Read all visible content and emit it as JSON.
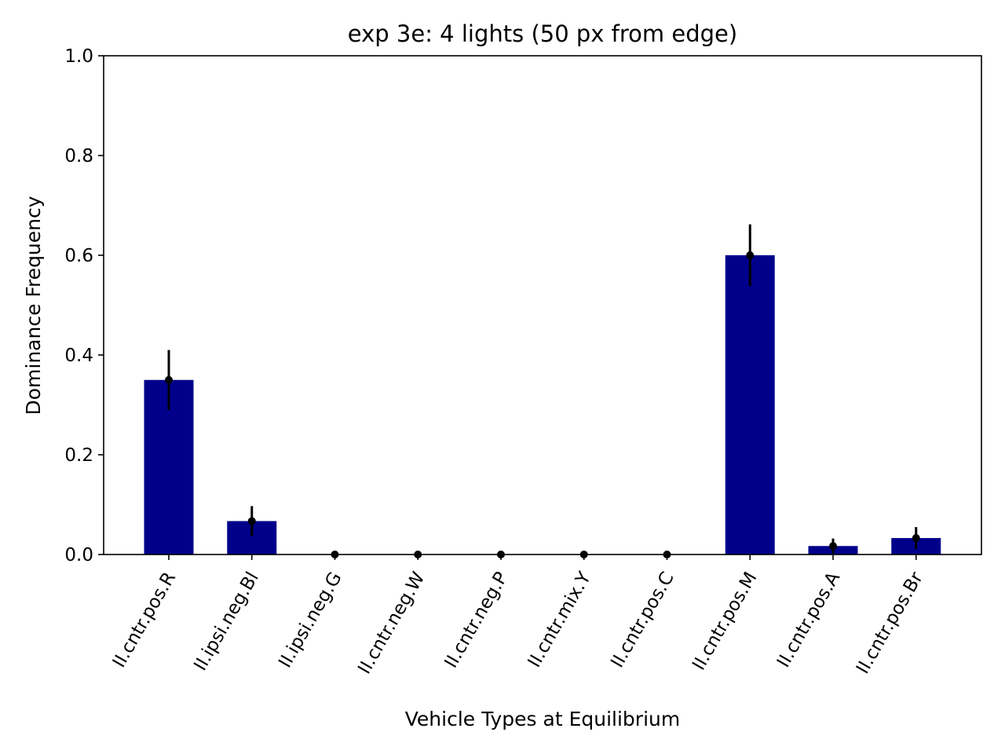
{
  "chart_data": {
    "type": "bar",
    "title": "exp 3e: 4 lights (50 px from edge)",
    "xlabel": "Vehicle Types at Equilibrium",
    "ylabel": "Dominance Frequency",
    "ylim": [
      0,
      1.0
    ],
    "yticks": [
      "0.0",
      "0.2",
      "0.4",
      "0.6",
      "0.8",
      "1.0"
    ],
    "categories": [
      "II.cntr.pos.R",
      "II.ipsi.neg.Bl",
      "II.ipsi.neg.G",
      "II.cntr.neg.W",
      "II.cntr.neg.P",
      "II.cntr.mix.Y",
      "II.cntr.pos.C",
      "II.cntr.pos.M",
      "II.cntr.pos.A",
      "II.cntr.pos.Br"
    ],
    "values": [
      0.35,
      0.067,
      0.0,
      0.0,
      0.0,
      0.0,
      0.0,
      0.6,
      0.017,
      0.033
    ],
    "errors": [
      0.06,
      0.03,
      0.0,
      0.0,
      0.0,
      0.0,
      0.0,
      0.062,
      0.015,
      0.022
    ],
    "bar_color": "#00008b",
    "error_color": "#000000",
    "grid": false
  }
}
